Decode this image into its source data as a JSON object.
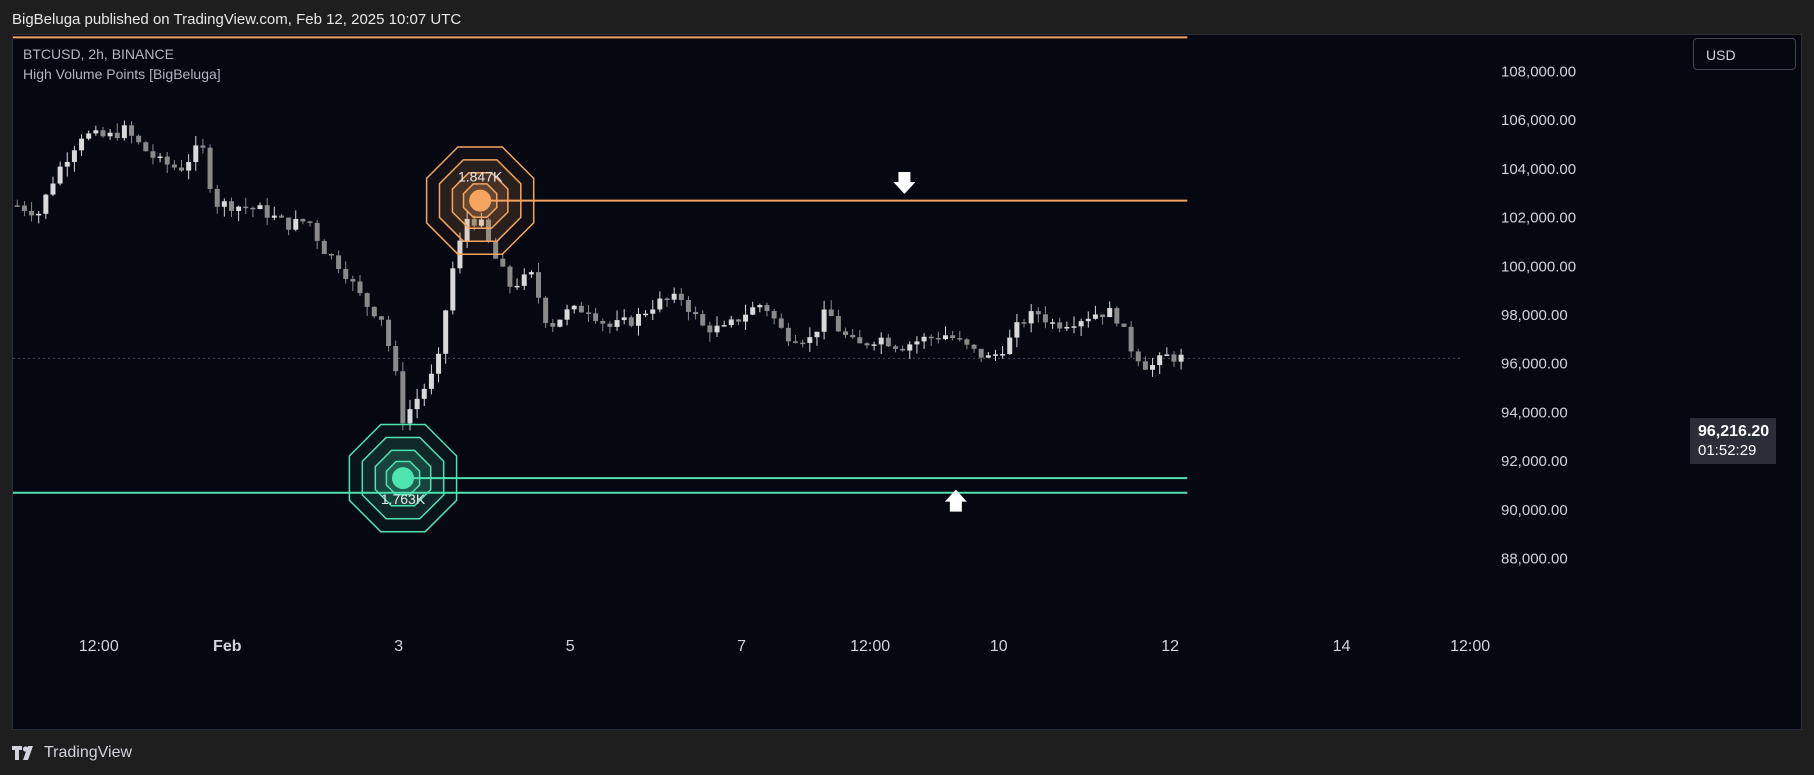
{
  "header": {
    "published_text": "BigBeluga published on TradingView.com, Feb 12, 2025 10:07 UTC"
  },
  "legend": {
    "symbol_line": "BTCUSD, 2h, BINANCE",
    "indicator_line": "High Volume Points [BigBeluga]"
  },
  "currency_button": "USD",
  "last_price": {
    "price": "96,216.20",
    "countdown": "01:52:29"
  },
  "footer": {
    "brand": "TradingView"
  },
  "colors": {
    "background": "#050711",
    "candle": "#d9d9d9",
    "candle_dim": "#8a8a8a",
    "resistance": "#f6a560",
    "support": "#4fe3b0"
  },
  "chart_data": {
    "type": "candlestick",
    "symbol": "BTCUSD",
    "timeframe": "2h",
    "exchange": "BINANCE",
    "ylim": [
      86500,
      109500
    ],
    "y_ticks": [
      {
        "value": 108000,
        "label": "108,000.00"
      },
      {
        "value": 106000,
        "label": "106,000.00"
      },
      {
        "value": 104000,
        "label": "104,000.00"
      },
      {
        "value": 102000,
        "label": "102,000.00"
      },
      {
        "value": 100000,
        "label": "100,000.00"
      },
      {
        "value": 98000,
        "label": "98,000.00"
      },
      {
        "value": 96000,
        "label": "96,000.00"
      },
      {
        "value": 94000,
        "label": "94,000.00"
      },
      {
        "value": 92000,
        "label": "92,000.00"
      },
      {
        "value": 90000,
        "label": "90,000.00"
      },
      {
        "value": 88000,
        "label": "88,000.00"
      }
    ],
    "x_range_days": [
      -2.5,
      14.3
    ],
    "x_ticks": [
      {
        "day": -1.5,
        "label": "12:00"
      },
      {
        "day": 0,
        "label": "Feb"
      },
      {
        "day": 2,
        "label": "3"
      },
      {
        "day": 4,
        "label": "5"
      },
      {
        "day": 6,
        "label": "7"
      },
      {
        "day": 7.5,
        "label": "12:00"
      },
      {
        "day": 9,
        "label": "10"
      },
      {
        "day": 11,
        "label": "12"
      },
      {
        "day": 13,
        "label": "14"
      },
      {
        "day": 14.5,
        "label": "12:00"
      }
    ],
    "candle_day_start": -2.45,
    "candle_step_days": 0.0833,
    "close_path": [
      [
        -2.45,
        102500
      ],
      [
        -2.2,
        102200
      ],
      [
        -2.0,
        103800
      ],
      [
        -1.7,
        105400
      ],
      [
        -1.4,
        105300
      ],
      [
        -1.2,
        105600
      ],
      [
        -1.0,
        104900
      ],
      [
        -0.8,
        104300
      ],
      [
        -0.55,
        104000
      ],
      [
        -0.3,
        105000
      ],
      [
        -0.15,
        102600
      ],
      [
        0.1,
        102500
      ],
      [
        0.4,
        102300
      ],
      [
        0.7,
        101700
      ],
      [
        0.95,
        101900
      ],
      [
        1.1,
        100800
      ],
      [
        1.35,
        99900
      ],
      [
        1.6,
        98500
      ],
      [
        1.8,
        97900
      ],
      [
        1.95,
        95800
      ],
      [
        2.05,
        93700
      ],
      [
        2.2,
        94500
      ],
      [
        2.45,
        95800
      ],
      [
        2.6,
        99500
      ],
      [
        2.8,
        102000
      ],
      [
        2.95,
        101800
      ],
      [
        3.1,
        100500
      ],
      [
        3.3,
        99200
      ],
      [
        3.55,
        99600
      ],
      [
        3.75,
        97500
      ],
      [
        3.95,
        98100
      ],
      [
        4.2,
        98300
      ],
      [
        4.45,
        97500
      ],
      [
        4.75,
        97800
      ],
      [
        5.0,
        98500
      ],
      [
        5.3,
        98700
      ],
      [
        5.55,
        97500
      ],
      [
        5.8,
        97400
      ],
      [
        6.05,
        98100
      ],
      [
        6.25,
        98500
      ],
      [
        6.5,
        97200
      ],
      [
        6.8,
        97000
      ],
      [
        7.0,
        98200
      ],
      [
        7.15,
        97300
      ],
      [
        7.35,
        96700
      ],
      [
        7.6,
        97100
      ],
      [
        7.85,
        96700
      ],
      [
        8.1,
        97000
      ],
      [
        8.4,
        97200
      ],
      [
        8.7,
        96500
      ],
      [
        8.9,
        96200
      ],
      [
        9.1,
        96800
      ],
      [
        9.25,
        97700
      ],
      [
        9.45,
        98100
      ],
      [
        9.65,
        97600
      ],
      [
        9.9,
        97800
      ],
      [
        10.15,
        98100
      ],
      [
        10.35,
        98100
      ],
      [
        10.55,
        96600
      ],
      [
        10.75,
        95800
      ],
      [
        10.95,
        96300
      ],
      [
        11.2,
        96216
      ]
    ],
    "levels": [
      {
        "type": "resistance",
        "price": 109400,
        "start_day": -2.5,
        "end_day": 11.2
      },
      {
        "type": "resistance",
        "price": 102700,
        "start_day": 2.95,
        "end_day": 11.2
      },
      {
        "type": "support",
        "price": 91300,
        "start_day": 2.1,
        "end_day": 11.2
      },
      {
        "type": "support",
        "price": 90700,
        "start_day": -2.5,
        "end_day": 11.2
      }
    ],
    "high_volume_points": [
      {
        "label": "1.847K",
        "day": 2.95,
        "price": 102700,
        "type": "resistance"
      },
      {
        "label": "1.763K",
        "day": 2.05,
        "price": 91300,
        "type": "support"
      }
    ],
    "arrows": [
      {
        "direction": "down",
        "day": 7.9,
        "price": 103300
      },
      {
        "direction": "up",
        "day": 8.5,
        "price": 90500
      }
    ],
    "last_price_value": 96216.2
  }
}
